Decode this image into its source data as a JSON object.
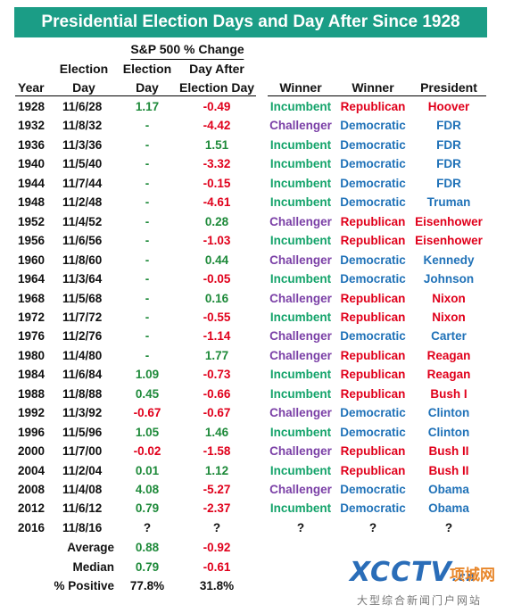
{
  "title": "Presidential Election Days and Day After Since 1928",
  "group_header": "S&P 500 % Change",
  "headers": {
    "year": "Year",
    "election_day_1": "Election",
    "election_day_2": "Day",
    "sp_election_1": "Election",
    "sp_election_2": "Day",
    "day_after_1": "Day After",
    "day_after_2": "Election Day",
    "winner_1": "Winner",
    "winner_2": "Winner",
    "president": "President"
  },
  "rows": [
    {
      "year": "1928",
      "date": "11/6/28",
      "elec": "1.17",
      "after": "-0.49",
      "w1": "Incumbent",
      "w2": "Republican",
      "pres": "Hoover"
    },
    {
      "year": "1932",
      "date": "11/8/32",
      "elec": "-",
      "after": "-4.42",
      "w1": "Challenger",
      "w2": "Democratic",
      "pres": "FDR"
    },
    {
      "year": "1936",
      "date": "11/3/36",
      "elec": "-",
      "after": "1.51",
      "w1": "Incumbent",
      "w2": "Democratic",
      "pres": "FDR"
    },
    {
      "year": "1940",
      "date": "11/5/40",
      "elec": "-",
      "after": "-3.32",
      "w1": "Incumbent",
      "w2": "Democratic",
      "pres": "FDR"
    },
    {
      "year": "1944",
      "date": "11/7/44",
      "elec": "-",
      "after": "-0.15",
      "w1": "Incumbent",
      "w2": "Democratic",
      "pres": "FDR"
    },
    {
      "year": "1948",
      "date": "11/2/48",
      "elec": "-",
      "after": "-4.61",
      "w1": "Incumbent",
      "w2": "Democratic",
      "pres": "Truman"
    },
    {
      "year": "1952",
      "date": "11/4/52",
      "elec": "-",
      "after": "0.28",
      "w1": "Challenger",
      "w2": "Republican",
      "pres": "Eisenhower"
    },
    {
      "year": "1956",
      "date": "11/6/56",
      "elec": "-",
      "after": "-1.03",
      "w1": "Incumbent",
      "w2": "Republican",
      "pres": "Eisenhower"
    },
    {
      "year": "1960",
      "date": "11/8/60",
      "elec": "-",
      "after": "0.44",
      "w1": "Challenger",
      "w2": "Democratic",
      "pres": "Kennedy"
    },
    {
      "year": "1964",
      "date": "11/3/64",
      "elec": "-",
      "after": "-0.05",
      "w1": "Incumbent",
      "w2": "Democratic",
      "pres": "Johnson"
    },
    {
      "year": "1968",
      "date": "11/5/68",
      "elec": "-",
      "after": "0.16",
      "w1": "Challenger",
      "w2": "Republican",
      "pres": "Nixon"
    },
    {
      "year": "1972",
      "date": "11/7/72",
      "elec": "-",
      "after": "-0.55",
      "w1": "Incumbent",
      "w2": "Republican",
      "pres": "Nixon"
    },
    {
      "year": "1976",
      "date": "11/2/76",
      "elec": "-",
      "after": "-1.14",
      "w1": "Challenger",
      "w2": "Democratic",
      "pres": "Carter"
    },
    {
      "year": "1980",
      "date": "11/4/80",
      "elec": "-",
      "after": "1.77",
      "w1": "Challenger",
      "w2": "Republican",
      "pres": "Reagan"
    },
    {
      "year": "1984",
      "date": "11/6/84",
      "elec": "1.09",
      "after": "-0.73",
      "w1": "Incumbent",
      "w2": "Republican",
      "pres": "Reagan"
    },
    {
      "year": "1988",
      "date": "11/8/88",
      "elec": "0.45",
      "after": "-0.66",
      "w1": "Incumbent",
      "w2": "Republican",
      "pres": "Bush I"
    },
    {
      "year": "1992",
      "date": "11/3/92",
      "elec": "-0.67",
      "after": "-0.67",
      "w1": "Challenger",
      "w2": "Democratic",
      "pres": "Clinton"
    },
    {
      "year": "1996",
      "date": "11/5/96",
      "elec": "1.05",
      "after": "1.46",
      "w1": "Incumbent",
      "w2": "Democratic",
      "pres": "Clinton"
    },
    {
      "year": "2000",
      "date": "11/7/00",
      "elec": "-0.02",
      "after": "-1.58",
      "w1": "Challenger",
      "w2": "Republican",
      "pres": "Bush II"
    },
    {
      "year": "2004",
      "date": "11/2/04",
      "elec": "0.01",
      "after": "1.12",
      "w1": "Incumbent",
      "w2": "Republican",
      "pres": "Bush II"
    },
    {
      "year": "2008",
      "date": "11/4/08",
      "elec": "4.08",
      "after": "-5.27",
      "w1": "Challenger",
      "w2": "Democratic",
      "pres": "Obama"
    },
    {
      "year": "2012",
      "date": "11/6/12",
      "elec": "0.79",
      "after": "-2.37",
      "w1": "Incumbent",
      "w2": "Democratic",
      "pres": "Obama"
    },
    {
      "year": "2016",
      "date": "11/8/16",
      "elec": "?",
      "after": "?",
      "w1": "?",
      "w2": "?",
      "pres": "?"
    }
  ],
  "summary": [
    {
      "label": "Average",
      "elec": "0.88",
      "after": "-0.92"
    },
    {
      "label": "Median",
      "elec": "0.79",
      "after": "-0.61"
    },
    {
      "label": "% Positive",
      "elec": "77.8%",
      "after": "31.8%"
    }
  ],
  "watermark": {
    "logo": "XCCTV",
    "logo_suffix": ".cn",
    "logo_cn": "项城网",
    "tagline": "大型综合新闻门户网站"
  },
  "colors": {
    "banner": "#1b9d86",
    "positive": "#1e8a3a",
    "negative": "#e0001b",
    "incumbent": "#13a36a",
    "challenger": "#7a3fa6",
    "democratic": "#2072b8",
    "republican": "#e0001b"
  }
}
